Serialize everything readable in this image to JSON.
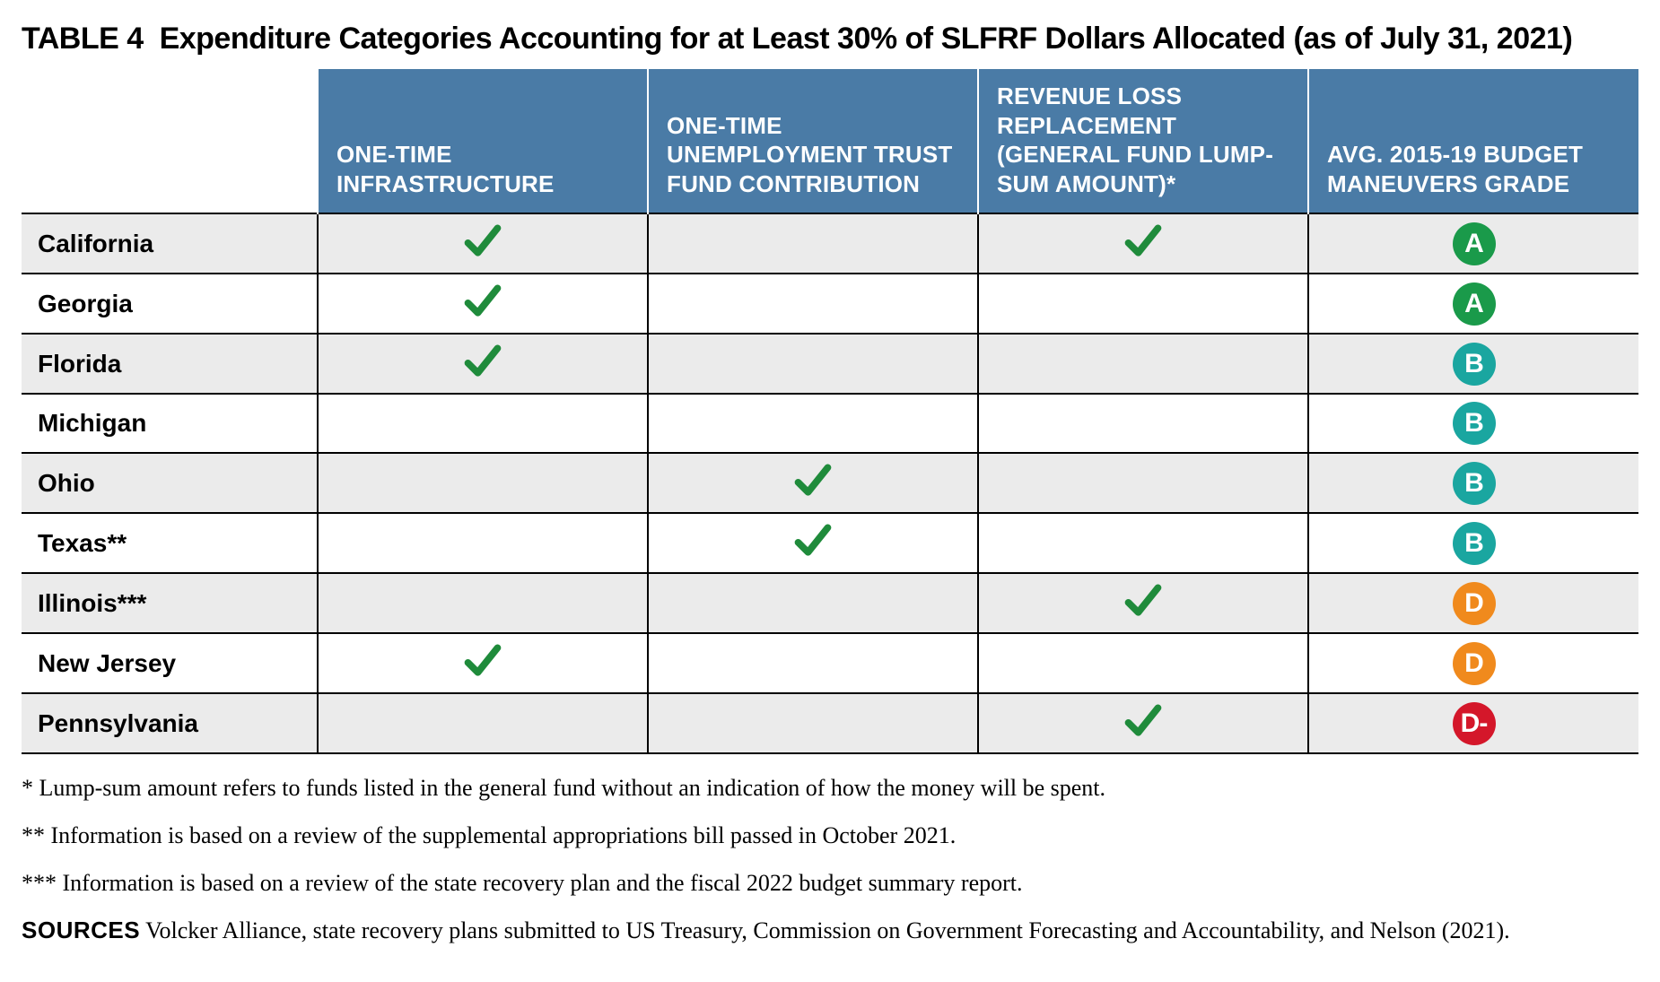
{
  "title_prefix": "TABLE 4",
  "title_text": "Expenditure Categories Accounting for at Least 30% of SLFRF Dollars Allocated (as of July 31, 2021)",
  "colors": {
    "header_bg": "#4a7ba6",
    "header_text": "#ffffff",
    "row_alt_bg": "#ebebeb",
    "border": "#000000",
    "check": "#1f8b3b",
    "grade_A": "#1a9a4a",
    "grade_B": "#1aa6a0",
    "grade_D": "#f08a1d",
    "grade_Dminus": "#d4172a"
  },
  "columns": [
    "ONE-TIME INFRASTRUCTURE",
    "ONE-TIME UNEMPLOYMENT TRUST FUND CONTRIBUTION",
    "REVENUE LOSS REPLACEMENT (GENERAL FUND LUMP-SUM AMOUNT)*",
    "AVG. 2015-19 BUDGET MANEUVERS GRADE"
  ],
  "rows": [
    {
      "label": "California",
      "checks": [
        true,
        false,
        true
      ],
      "grade": "A",
      "grade_color_key": "grade_A"
    },
    {
      "label": "Georgia",
      "checks": [
        true,
        false,
        false
      ],
      "grade": "A",
      "grade_color_key": "grade_A"
    },
    {
      "label": "Florida",
      "checks": [
        true,
        false,
        false
      ],
      "grade": "B",
      "grade_color_key": "grade_B"
    },
    {
      "label": "Michigan",
      "checks": [
        false,
        false,
        false
      ],
      "grade": "B",
      "grade_color_key": "grade_B"
    },
    {
      "label": "Ohio",
      "checks": [
        false,
        true,
        false
      ],
      "grade": "B",
      "grade_color_key": "grade_B"
    },
    {
      "label": "Texas**",
      "checks": [
        false,
        true,
        false
      ],
      "grade": "B",
      "grade_color_key": "grade_B"
    },
    {
      "label": "Illinois***",
      "checks": [
        false,
        false,
        true
      ],
      "grade": "D",
      "grade_color_key": "grade_D"
    },
    {
      "label": "New Jersey",
      "checks": [
        true,
        false,
        false
      ],
      "grade": "D",
      "grade_color_key": "grade_D"
    },
    {
      "label": "Pennsylvania",
      "checks": [
        false,
        false,
        true
      ],
      "grade": "D-",
      "grade_color_key": "grade_Dminus"
    }
  ],
  "footnotes": [
    {
      "mark": "*",
      "text": "Lump-sum amount refers to funds listed in the general fund without an indication of how the money will be spent."
    },
    {
      "mark": "**",
      "text": "Information is based on a review of the supplemental appropriations bill passed in October 2021."
    },
    {
      "mark": "***",
      "text": "Information is based on a review of the state recovery plan and the fiscal 2022 budget summary report."
    }
  ],
  "sources_label": "SOURCES",
  "sources_text": "Volcker Alliance, state recovery plans submitted to US Treasury, Commission on Government Forecasting and Accountability, and Nelson (2021)."
}
